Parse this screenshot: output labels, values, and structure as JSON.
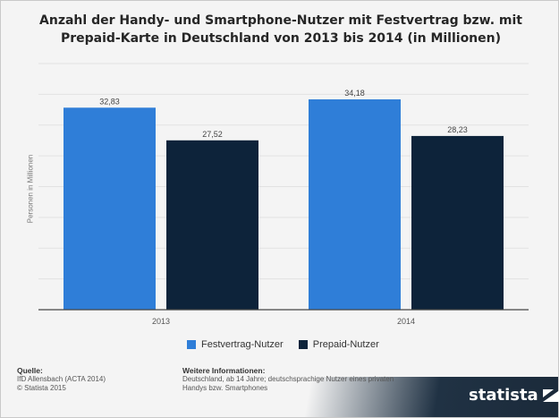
{
  "title": "Anzahl der Handy- und Smartphone-Nutzer mit Festvertrag bzw. mit Prepaid-Karte in Deutschland von 2013 bis 2014 (in Millionen)",
  "colors": {
    "festvertrag": "#2f7ed8",
    "prepaid": "#0d233a",
    "grid": "#e2e2e2",
    "axis": "#444444"
  },
  "chart_data": {
    "type": "bar",
    "title": "Anzahl der Handy- und Smartphone-Nutzer mit Festvertrag bzw. mit Prepaid-Karte in Deutschland von 2013 bis 2014 (in Millionen)",
    "categories": [
      "2013",
      "2014"
    ],
    "series": [
      {
        "name": "Festvertrag-Nutzer",
        "values": [
          32.83,
          34.18
        ],
        "labels": [
          "32,83",
          "34,18"
        ]
      },
      {
        "name": "Prepaid-Nutzer",
        "values": [
          27.52,
          28.23
        ],
        "labels": [
          "27,52",
          "28,23"
        ]
      }
    ],
    "xlabel": "",
    "ylabel": "Personen in Millionen",
    "ylim": [
      0,
      40
    ],
    "grid": true,
    "legend": "bottom"
  },
  "legend": {
    "festvertrag": "Festvertrag-Nutzer",
    "prepaid": "Prepaid-Nutzer"
  },
  "footer": {
    "source_heading": "Quelle:",
    "source_lines": [
      "IfD Allensbach (ACTA 2014)",
      "© Statista 2015"
    ],
    "info_heading": "Weitere Informationen:",
    "info_lines": [
      "Deutschland, ab 14 Jahre; deutschsprachige Nutzer eines privaten",
      "Handys bzw. Smartphones"
    ]
  },
  "brand": {
    "name": "statista",
    "icon": "statista-logo-icon"
  }
}
